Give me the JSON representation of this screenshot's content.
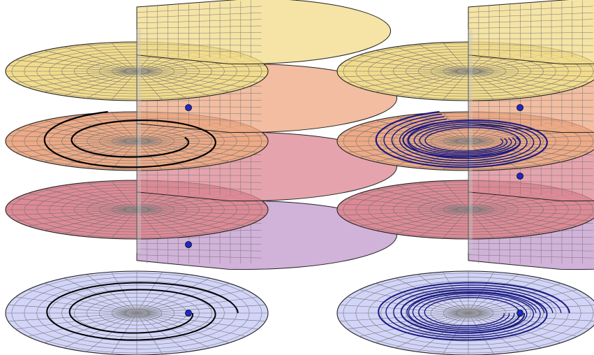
{
  "figure": {
    "panels": [
      {
        "id": "left",
        "description_key": "single-lift",
        "sheets": [
          {
            "name": "sheet-top",
            "color": "#f2dc8c"
          },
          {
            "name": "sheet-2",
            "color": "#eeaa86"
          },
          {
            "name": "sheet-3",
            "color": "#de8a96"
          },
          {
            "name": "sheet-bottom",
            "color": "#c49cce"
          }
        ],
        "base_color": "#d2d4f8",
        "path_color": "#000000",
        "path_count": 1,
        "marker_color": "#1e28c8"
      },
      {
        "id": "right",
        "description_key": "many-lifts",
        "sheets": [
          {
            "name": "sheet-top",
            "color": "#f2dc8c"
          },
          {
            "name": "sheet-2",
            "color": "#eeaa86"
          },
          {
            "name": "sheet-3",
            "color": "#de8a96"
          },
          {
            "name": "sheet-bottom",
            "color": "#c49cce"
          }
        ],
        "base_color": "#d2d4f8",
        "path_color": "#1a1a80",
        "path_count": 5,
        "marker_color": "#1e28c8"
      }
    ]
  }
}
